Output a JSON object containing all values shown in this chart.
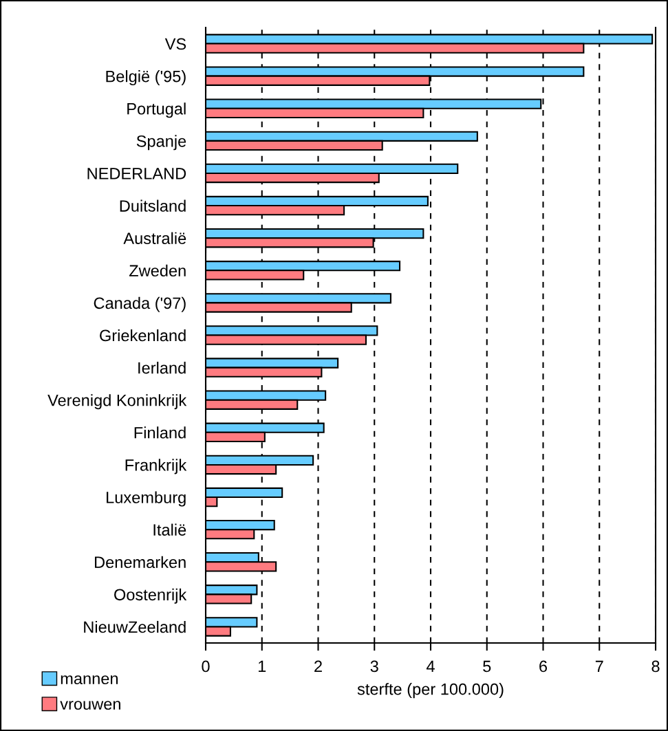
{
  "chart_data": {
    "type": "bar",
    "orientation": "horizontal",
    "xlabel": "sterfte (per 100.000)",
    "categories": [
      "VS",
      "België ('95)",
      "Portugal",
      "Spanje",
      "NEDERLAND",
      "Duitsland",
      "Australië",
      "Zweden",
      "Canada ('97)",
      "Griekenland",
      "Ierland",
      "Verenigd Koninkrijk",
      "Finland",
      "Frankrijk",
      "Luxemburg",
      "Italië",
      "Denemarken",
      "Oostenrijk",
      "NieuwZeeland"
    ],
    "series": [
      {
        "name": "mannen",
        "color": "#66ccff",
        "values": [
          7.94,
          6.72,
          5.96,
          4.83,
          4.48,
          3.95,
          3.87,
          3.45,
          3.29,
          3.05,
          2.35,
          2.13,
          2.1,
          1.91,
          1.36,
          1.22,
          0.94,
          0.91,
          0.91
        ]
      },
      {
        "name": "vrouwen",
        "color": "#ff7b80",
        "values": [
          6.72,
          3.98,
          3.87,
          3.14,
          3.08,
          2.46,
          2.98,
          1.74,
          2.59,
          2.85,
          2.06,
          1.63,
          1.05,
          1.25,
          0.2,
          0.86,
          1.25,
          0.81,
          0.44
        ]
      }
    ],
    "xlim": [
      0,
      8
    ],
    "xticks": [
      0,
      1,
      2,
      3,
      4,
      5,
      6,
      7,
      8
    ],
    "grid": "x",
    "legend": "bottom left"
  }
}
